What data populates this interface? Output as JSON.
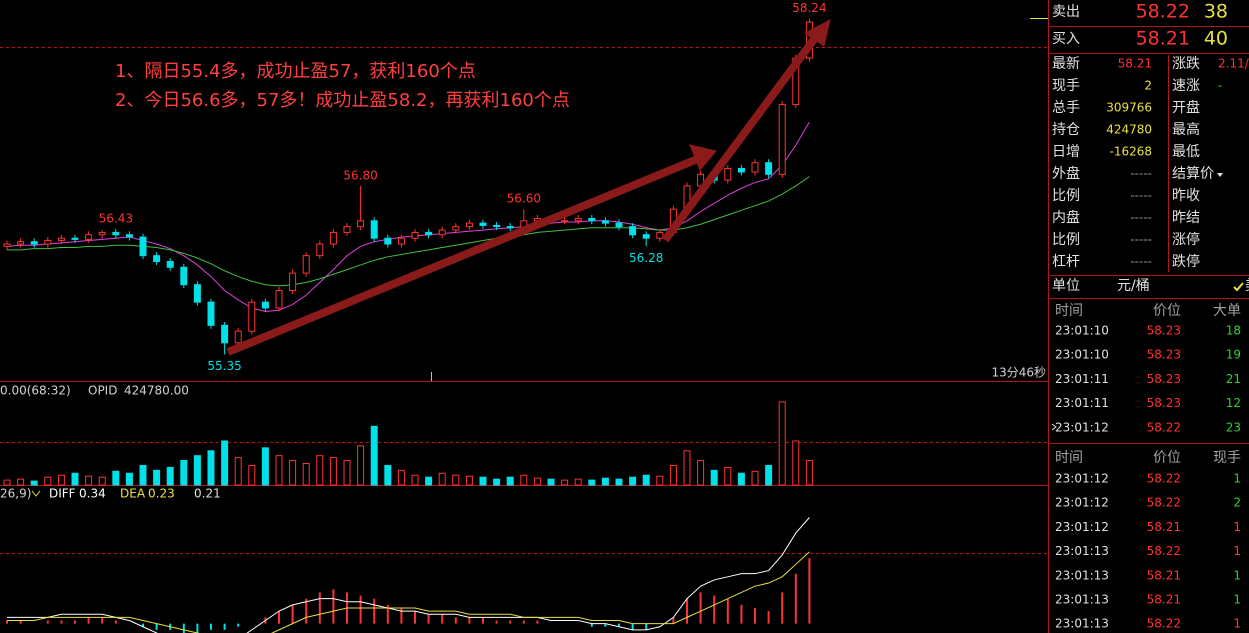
{
  "chart_data": {
    "type": "candlestick",
    "annotations": [
      "1、隔日55.4多，成功止盈57，获利160个点",
      "2、今日56.6多，57多！成功止盈58.2，再获利160个点"
    ],
    "timer": "13分46秒",
    "ylim": [
      55.13,
      58.4
    ],
    "up_color": "#ff3232",
    "down_color": "#00e0e8",
    "open": [
      56.28,
      56.3,
      56.32,
      56.3,
      56.33,
      56.35,
      56.34,
      56.38,
      56.4,
      56.38,
      56.36,
      56.2,
      56.15,
      56.1,
      55.95,
      55.8,
      55.6,
      55.45,
      55.55,
      55.8,
      55.75,
      55.9,
      56.05,
      56.2,
      56.3,
      56.4,
      56.45,
      56.5,
      56.35,
      56.3,
      56.35,
      56.4,
      56.38,
      56.42,
      56.45,
      56.48,
      56.46,
      56.45,
      56.44,
      56.5,
      56.52,
      56.5,
      56.5,
      56.52,
      56.5,
      56.48,
      56.45,
      56.38,
      56.35,
      56.4,
      56.6,
      56.8,
      56.9,
      56.85,
      56.95,
      56.92,
      57.0,
      56.9,
      57.5,
      57.9
    ],
    "high": [
      56.33,
      56.35,
      56.35,
      56.36,
      56.38,
      56.38,
      56.41,
      56.42,
      56.43,
      56.41,
      56.39,
      56.23,
      56.18,
      56.13,
      55.98,
      55.83,
      55.63,
      55.58,
      55.83,
      55.83,
      55.93,
      56.08,
      56.23,
      56.33,
      56.43,
      56.48,
      56.8,
      56.53,
      56.38,
      56.38,
      56.43,
      56.43,
      56.45,
      56.48,
      56.51,
      56.51,
      56.49,
      56.48,
      56.6,
      56.55,
      56.55,
      56.53,
      56.55,
      56.55,
      56.53,
      56.51,
      56.48,
      56.41,
      56.43,
      56.63,
      56.83,
      56.93,
      56.93,
      56.98,
      56.98,
      57.03,
      57.03,
      57.53,
      57.93,
      58.24
    ],
    "low": [
      56.25,
      56.27,
      56.27,
      56.27,
      56.3,
      56.31,
      56.31,
      56.35,
      56.35,
      56.33,
      56.17,
      56.12,
      56.07,
      55.92,
      55.77,
      55.57,
      55.35,
      55.42,
      55.52,
      55.72,
      55.72,
      55.87,
      56.02,
      56.17,
      56.27,
      56.37,
      56.42,
      56.32,
      56.27,
      56.27,
      56.32,
      56.35,
      56.35,
      56.39,
      56.42,
      56.43,
      56.42,
      56.41,
      56.41,
      56.47,
      56.47,
      56.47,
      56.47,
      56.47,
      56.45,
      56.42,
      56.35,
      56.28,
      56.32,
      56.37,
      56.57,
      56.77,
      56.82,
      56.82,
      56.89,
      56.89,
      56.87,
      56.87,
      57.47,
      57.87
    ],
    "close": [
      56.3,
      56.32,
      56.3,
      56.33,
      56.35,
      56.34,
      56.38,
      56.4,
      56.38,
      56.36,
      56.2,
      56.15,
      56.1,
      55.95,
      55.8,
      55.6,
      55.45,
      55.55,
      55.8,
      55.75,
      55.9,
      56.05,
      56.2,
      56.3,
      56.4,
      56.45,
      56.5,
      56.35,
      56.3,
      56.35,
      56.4,
      56.38,
      56.42,
      56.45,
      56.48,
      56.46,
      56.45,
      56.44,
      56.5,
      56.52,
      56.5,
      56.5,
      56.52,
      56.5,
      56.48,
      56.45,
      56.38,
      56.35,
      56.4,
      56.6,
      56.8,
      56.9,
      56.85,
      56.95,
      56.92,
      57.0,
      56.9,
      57.5,
      57.9,
      58.21
    ],
    "extremes": [
      {
        "value": 56.43,
        "label": "56.43"
      },
      {
        "value": 55.35,
        "label": "55.35"
      },
      {
        "value": 56.8,
        "label": "56.80"
      },
      {
        "value": 56.6,
        "label": "56.60"
      },
      {
        "value": 56.28,
        "label": "56.28"
      },
      {
        "value": 58.24,
        "label": "58.24"
      }
    ],
    "ma": [
      {
        "color": "#e040e0",
        "values": [
          56.28,
          56.29,
          56.29,
          56.3,
          56.31,
          56.32,
          56.33,
          56.34,
          56.35,
          56.36,
          56.33,
          56.3,
          56.26,
          56.2,
          56.12,
          56.02,
          55.9,
          55.82,
          55.75,
          55.72,
          55.73,
          55.78,
          55.86,
          55.97,
          56.08,
          56.2,
          56.28,
          56.32,
          56.34,
          56.36,
          56.37,
          56.38,
          56.39,
          56.4,
          56.41,
          56.42,
          56.43,
          56.44,
          56.45,
          56.47,
          56.48,
          56.49,
          56.49,
          56.5,
          56.5,
          56.49,
          56.47,
          56.44,
          56.42,
          56.44,
          56.5,
          56.58,
          56.65,
          56.72,
          56.78,
          56.83,
          56.86,
          56.98,
          57.15,
          57.35
        ]
      },
      {
        "color": "#40c040",
        "values": [
          56.25,
          56.25,
          56.26,
          56.26,
          56.27,
          56.27,
          56.28,
          56.28,
          56.29,
          56.29,
          56.28,
          56.27,
          56.25,
          56.22,
          56.18,
          56.13,
          56.07,
          56.02,
          55.98,
          55.95,
          55.94,
          55.95,
          55.97,
          56.0,
          56.04,
          56.08,
          56.12,
          56.16,
          56.19,
          56.21,
          56.23,
          56.25,
          56.27,
          56.29,
          56.31,
          56.33,
          56.35,
          56.37,
          56.38,
          56.4,
          56.41,
          56.42,
          56.43,
          56.44,
          56.44,
          56.44,
          56.44,
          56.43,
          56.42,
          56.42,
          56.44,
          56.47,
          56.51,
          56.55,
          56.59,
          56.63,
          56.67,
          56.73,
          56.8,
          56.88
        ]
      }
    ],
    "volume": {
      "header": "0.00(68:32)",
      "opid_label": "OPID",
      "opid": "424780.00",
      "ylim": [
        0,
        90
      ],
      "values": [
        5,
        6,
        4,
        8,
        10,
        12,
        9,
        8,
        14,
        12,
        20,
        15,
        18,
        25,
        30,
        35,
        45,
        28,
        20,
        38,
        30,
        25,
        22,
        30,
        28,
        25,
        40,
        60,
        20,
        15,
        10,
        8,
        12,
        10,
        9,
        8,
        6,
        8,
        10,
        7,
        6,
        5,
        6,
        5,
        7,
        6,
        8,
        10,
        9,
        20,
        35,
        25,
        15,
        18,
        12,
        14,
        20,
        85,
        45,
        25
      ]
    },
    "macd": {
      "header": "26,9)",
      "diff_label": "DIFF",
      "diff": 0.34,
      "dea_label": "DEA",
      "dea": 0.23,
      "macd": 0.21,
      "ylim": [
        -0.03,
        0.38
      ],
      "diff_color": "#ffffff",
      "dea_color": "#e8e040",
      "bars": [
        0.01,
        0.01,
        0.0,
        0.01,
        0.01,
        0.01,
        0.02,
        0.02,
        0.01,
        0.0,
        -0.01,
        -0.02,
        -0.02,
        -0.03,
        -0.03,
        -0.02,
        -0.02,
        -0.01,
        0.0,
        0.02,
        0.04,
        0.06,
        0.08,
        0.1,
        0.11,
        0.1,
        0.09,
        0.08,
        0.06,
        0.05,
        0.04,
        0.03,
        0.03,
        0.02,
        0.02,
        0.02,
        0.01,
        0.01,
        0.01,
        0.01,
        0.0,
        0.0,
        0.0,
        -0.01,
        -0.01,
        -0.01,
        -0.02,
        -0.02,
        0.0,
        0.02,
        0.08,
        0.1,
        0.09,
        0.08,
        0.06,
        0.05,
        0.04,
        0.1,
        0.16,
        0.21
      ],
      "diff_values": [
        0.02,
        0.02,
        0.02,
        0.02,
        0.03,
        0.03,
        0.03,
        0.03,
        0.02,
        0.01,
        -0.01,
        -0.03,
        -0.05,
        -0.07,
        -0.08,
        -0.08,
        -0.07,
        -0.05,
        -0.02,
        0.01,
        0.04,
        0.06,
        0.07,
        0.08,
        0.08,
        0.07,
        0.07,
        0.06,
        0.05,
        0.04,
        0.04,
        0.03,
        0.03,
        0.03,
        0.02,
        0.02,
        0.02,
        0.02,
        0.02,
        0.02,
        0.01,
        0.01,
        0.01,
        0.0,
        0.0,
        -0.01,
        -0.02,
        -0.02,
        -0.01,
        0.02,
        0.08,
        0.12,
        0.14,
        0.15,
        0.16,
        0.16,
        0.17,
        0.22,
        0.29,
        0.34
      ],
      "dea_values": [
        0.01,
        0.01,
        0.01,
        0.02,
        0.02,
        0.02,
        0.02,
        0.02,
        0.02,
        0.02,
        0.01,
        0.0,
        -0.01,
        -0.02,
        -0.03,
        -0.04,
        -0.05,
        -0.05,
        -0.05,
        -0.04,
        -0.02,
        0.0,
        0.02,
        0.03,
        0.04,
        0.05,
        0.05,
        0.05,
        0.05,
        0.05,
        0.05,
        0.04,
        0.04,
        0.04,
        0.03,
        0.03,
        0.03,
        0.03,
        0.02,
        0.02,
        0.02,
        0.02,
        0.02,
        0.01,
        0.01,
        0.01,
        0.0,
        0.0,
        0.0,
        0.0,
        0.02,
        0.04,
        0.06,
        0.08,
        0.1,
        0.12,
        0.13,
        0.15,
        0.19,
        0.23
      ]
    }
  },
  "panel": {
    "bid_ask": [
      {
        "label": "卖出",
        "price": "58.22",
        "volume": "38"
      },
      {
        "label": "买入",
        "price": "58.21",
        "volume": "40"
      }
    ],
    "quote": [
      {
        "label": "最新",
        "value": "58.21",
        "color": "#ff3232",
        "label2": "涨跌",
        "value2": "2.11/",
        "color2": "#ff3232"
      },
      {
        "label": "现手",
        "value": "2",
        "color": "#e8e040",
        "label2": "速涨",
        "value2": "-",
        "color2": "#30d030"
      },
      {
        "label": "总手",
        "value": "309766",
        "color": "#e8e040",
        "label2": "开盘"
      },
      {
        "label": "持仓",
        "value": "424780",
        "color": "#e8e040",
        "label2": "最高"
      },
      {
        "label": "日增",
        "value": "-16268",
        "color": "#e8e040",
        "label2": "最低"
      },
      {
        "label": "外盘",
        "value": "-----",
        "color": "#909090",
        "label2": "结算价"
      },
      {
        "label": "比例",
        "value": "-----",
        "color": "#909090",
        "label2": "昨收"
      },
      {
        "label": "内盘",
        "value": "-----",
        "color": "#909090",
        "label2": "昨结"
      },
      {
        "label": "比例",
        "value": "-----",
        "color": "#909090",
        "label2": "涨停"
      },
      {
        "label": "杠杆",
        "value": "-----",
        "color": "#909090",
        "label2": "跌停"
      }
    ],
    "unit": {
      "label": "单位",
      "value": "元/桶",
      "option": "美"
    },
    "trades_big": {
      "headers": [
        "时间",
        "价位",
        "大单"
      ],
      "rows": [
        {
          "time": "23:01:10",
          "price": "58.23",
          "qty": "18",
          "color": "#30d030"
        },
        {
          "time": "23:01:10",
          "price": "58.23",
          "qty": "19",
          "color": "#30d030"
        },
        {
          "time": "23:01:11",
          "price": "58.23",
          "qty": "21",
          "color": "#30d030"
        },
        {
          "time": "23:01:11",
          "price": "58.23",
          "qty": "12",
          "color": "#30d030"
        },
        {
          "time": "23:01:12",
          "price": "58.22",
          "qty": "23",
          "color": "#30d030"
        }
      ]
    },
    "trades": {
      "headers": [
        "时间",
        "价位",
        "现手"
      ],
      "rows": [
        {
          "time": "23:01:12",
          "price": "58.22",
          "qty": "1",
          "color": "#30d030"
        },
        {
          "time": "23:01:12",
          "price": "58.22",
          "qty": "2",
          "color": "#30d030"
        },
        {
          "time": "23:01:12",
          "price": "58.21",
          "qty": "1",
          "color": "#ff3232"
        },
        {
          "time": "23:01:13",
          "price": "58.22",
          "qty": "1",
          "color": "#ff3232"
        },
        {
          "time": "23:01:13",
          "price": "58.21",
          "qty": "1",
          "color": "#30d030"
        },
        {
          "time": "23:01:13",
          "price": "58.21",
          "qty": "1",
          "color": "#30d030"
        },
        {
          "time": "23:01:13",
          "price": "58.22",
          "qty": "1",
          "color": "#ff3232"
        }
      ]
    }
  }
}
